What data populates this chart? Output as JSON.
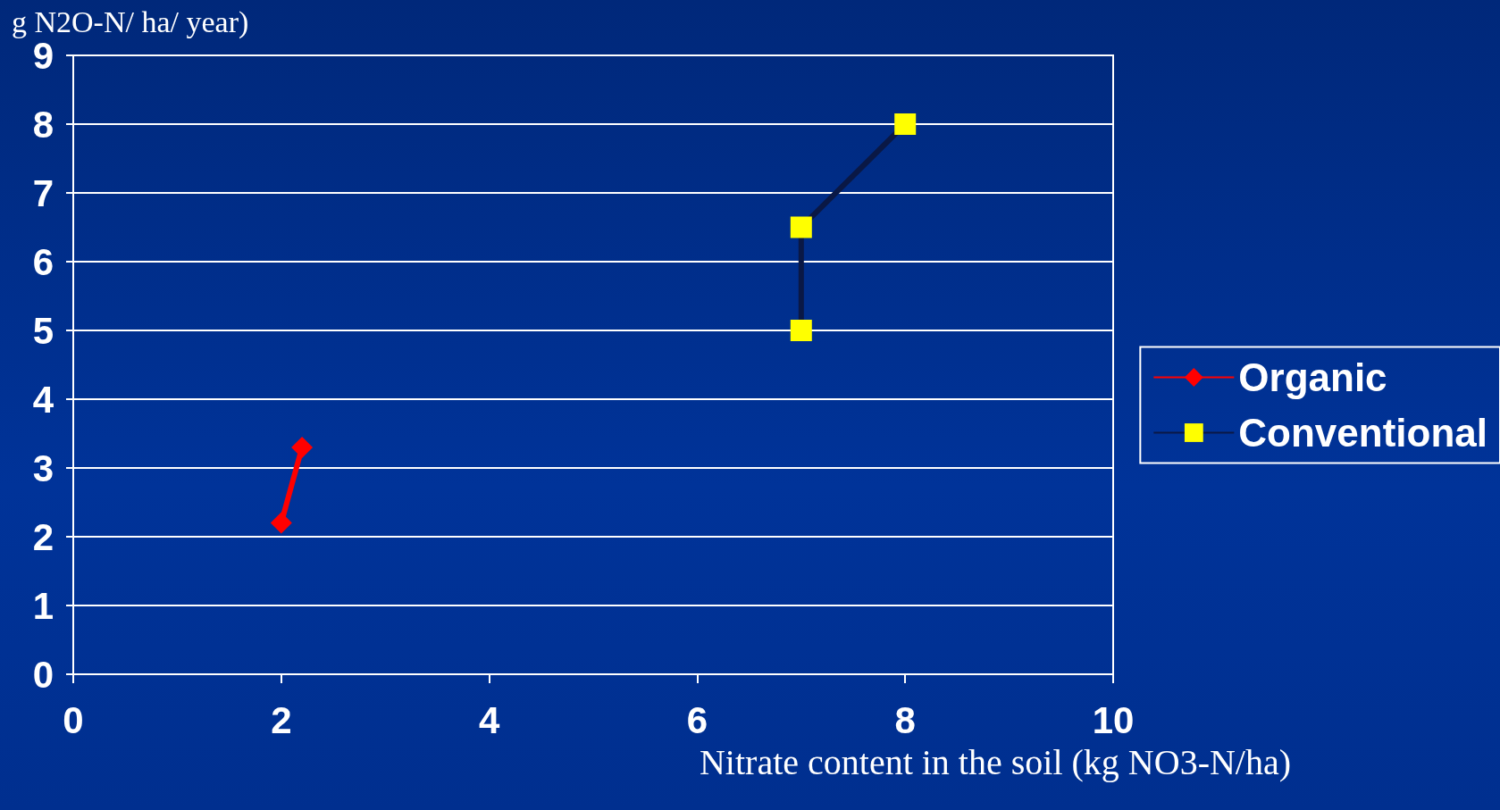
{
  "chart_data": {
    "type": "line",
    "xlabel": "Nitrate content in the soil (kg NO3-N/ha)",
    "ylabel": "g N2O-N/ ha/ year)",
    "xlim": [
      0,
      10
    ],
    "xticks": [
      0,
      2,
      4,
      6,
      8,
      10
    ],
    "ylim": [
      0,
      9
    ],
    "yticks": [
      0,
      1,
      2,
      3,
      4,
      5,
      6,
      7,
      8,
      9
    ],
    "grid": "y",
    "legend": "right",
    "series": [
      {
        "name": "Organic",
        "color": "#ff0000",
        "marker": "diamond",
        "x": [
          2,
          2.2
        ],
        "values": [
          2.2,
          3.3
        ]
      },
      {
        "name": "Conventional",
        "color": "#0a1845",
        "colors": [
          "#ffff00",
          "#ffff00",
          "#ffff00"
        ],
        "marker": "square",
        "x": [
          7,
          7,
          8
        ],
        "values": [
          5,
          6.5,
          8
        ]
      }
    ]
  }
}
